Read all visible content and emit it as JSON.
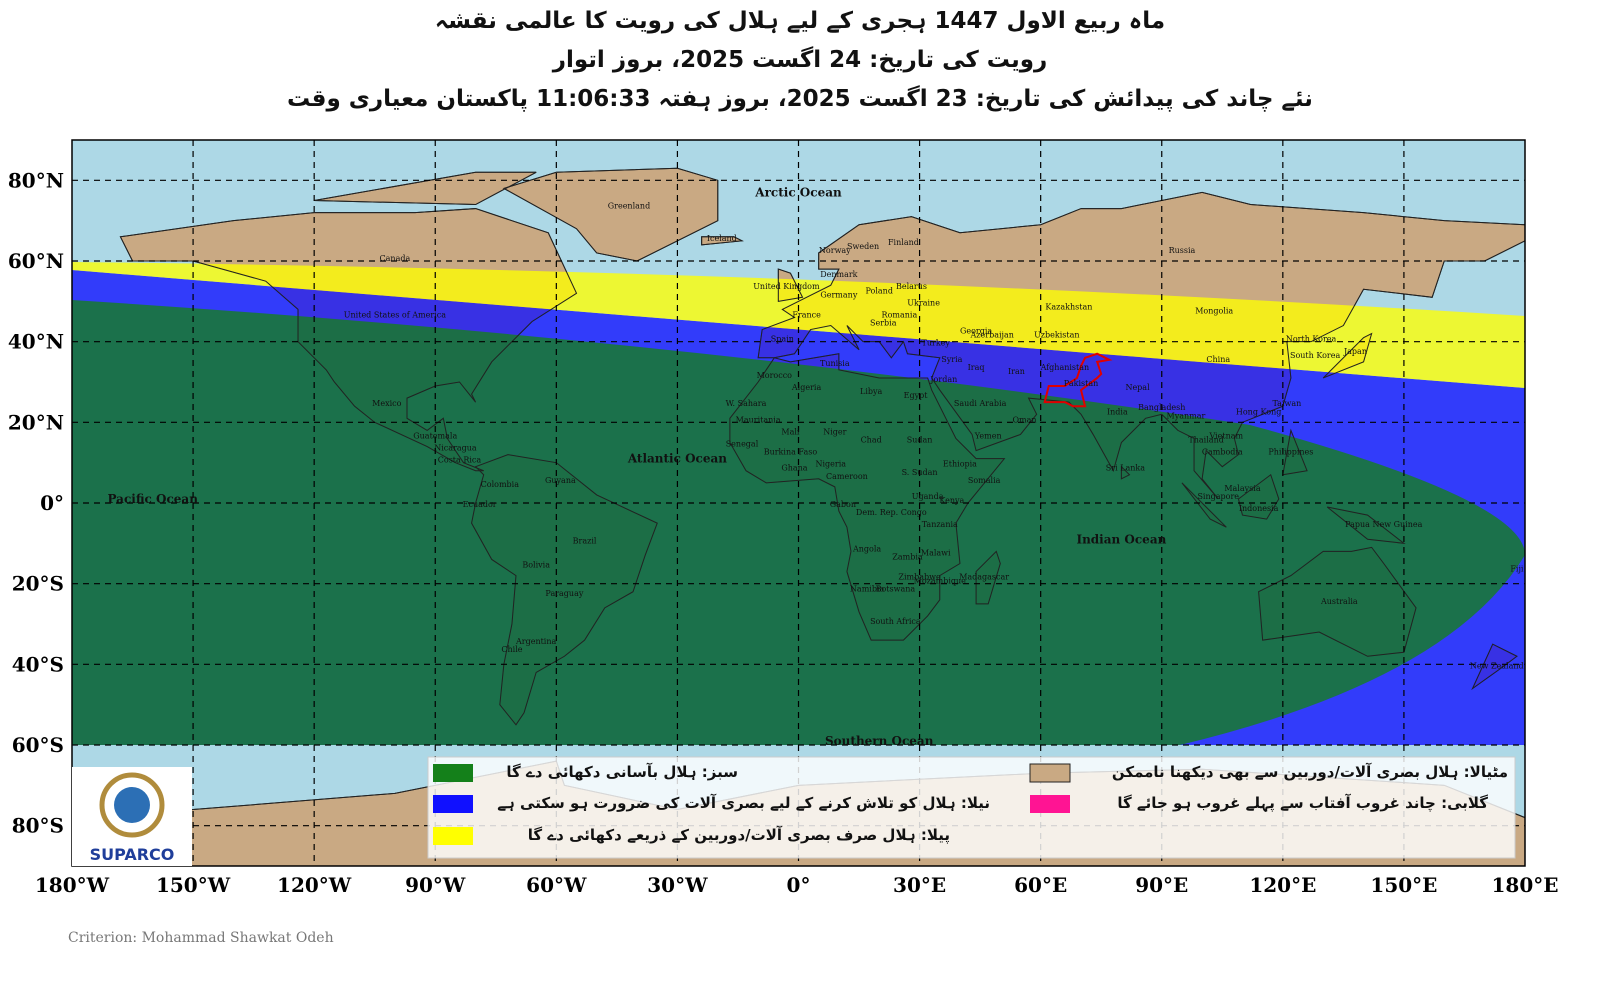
{
  "header": {
    "title_lines": [
      "ماہ ربیع الاول 1447 ہجری کے لیے ہلال کی رویت کا عالمی نقشہ",
      "رویت کی تاریخ: 24 اگست 2025، بروز اتوار",
      "نئے چاند کی پیدائش کی تاریخ: 23 اگست 2025، بروز ہفتہ 11:06:33 پاکستان معیاری وقت"
    ]
  },
  "map": {
    "lat_labels": [
      "80°N",
      "60°N",
      "40°N",
      "20°N",
      "0°",
      "20°S",
      "40°S",
      "60°S",
      "80°S"
    ],
    "lon_labels": [
      "180°W",
      "150°W",
      "120°W",
      "90°W",
      "60°W",
      "30°W",
      "0°",
      "30°E",
      "60°E",
      "90°E",
      "120°E",
      "150°E",
      "180°E"
    ],
    "grid": true,
    "land_color": "#c9a983",
    "ocean_color": "#add8e6",
    "highlight_color": "#e00000",
    "ocean_labels": [
      "Arctic Ocean",
      "Atlantic Ocean",
      "Pacific Ocean",
      "Indian Ocean",
      "Southern Ocean"
    ],
    "country_labels": [
      "Greenland",
      "Iceland",
      "Canada",
      "United States of America",
      "Mexico",
      "Guatemala",
      "Nicaragua",
      "Costa Rica",
      "Colombia",
      "Ecuador",
      "Guyana",
      "Brazil",
      "Bolivia",
      "Paraguay",
      "Argentina",
      "Chile",
      "Norway",
      "Sweden",
      "Finland",
      "Denmark",
      "United Kingdom",
      "Germany",
      "Poland",
      "Belarus",
      "Ukraine",
      "France",
      "Spain",
      "Romania",
      "Serbia",
      "Turkey",
      "Georgia",
      "Azerbaijan",
      "Syria",
      "Iraq",
      "Iran",
      "Jordan",
      "Uzbekistan",
      "Kazakhstan",
      "Russia",
      "Mongolia",
      "China",
      "North Korea",
      "South Korea",
      "Japan",
      "Afghanistan",
      "Pakistan",
      "India",
      "Nepal",
      "Bangladesh",
      "Myanmar",
      "Thailand",
      "Vietnam",
      "Cambodia",
      "Hong Kong",
      "Taiwan",
      "Philippines",
      "Malaysia",
      "Singapore",
      "Indonesia",
      "Papua New Guinea",
      "Sri Lanka",
      "Australia",
      "New Zealand",
      "Fiji",
      "Morocco",
      "W. Sahara",
      "Mauritania",
      "Algeria",
      "Tunisia",
      "Libya",
      "Egypt",
      "Mali",
      "Niger",
      "Chad",
      "Sudan",
      "Senegal",
      "Burkina Faso",
      "Ghana",
      "Nigeria",
      "Cameroon",
      "S. Sudan",
      "Ethiopia",
      "Somalia",
      "Yemen",
      "Saudi Arabia",
      "Oman",
      "Uganda",
      "Kenya",
      "Gabon",
      "Dem. Rep. Congo",
      "Tanzania",
      "Angola",
      "Zambia",
      "Malawi",
      "Zimbabwe",
      "Mozambique",
      "Namibia",
      "Botswana",
      "South Africa",
      "Madagascar"
    ]
  },
  "legend": {
    "items": [
      {
        "label": "سبز: ہلال بآسانی دکھائی دے گا",
        "color": "#14801a"
      },
      {
        "label": "نیلا: ہلال کو تلاش کرنے کے لیے بصری آلات کی ضرورت ہو سکتی ہے",
        "color": "#1010ff"
      },
      {
        "label": "پیلا: ہلال صرف بصری آلات/دوربین کے ذریعے دکھائی دے گا",
        "color": "#ffff00"
      },
      {
        "label": "مٹیالا: ہلال بصری آلات/دوربین سے بھی دیکھنا ناممکن",
        "color": "#c9a983"
      },
      {
        "label": "گلابی: چاند غروب آفتاب سے پہلے غروب ہو جائے گا",
        "color": "#ff1493"
      }
    ]
  },
  "logo": {
    "text": "SUPARCO"
  },
  "footer": {
    "credit": "Criterion: Mohammad Shawkat Odeh"
  }
}
